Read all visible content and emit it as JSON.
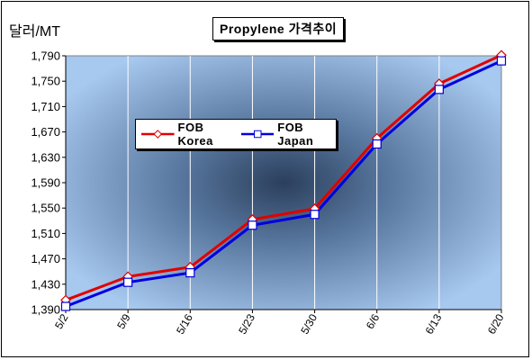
{
  "chart_data": {
    "type": "line",
    "title": "Propylene 가격추이",
    "ylabel": "달러/MT",
    "xlabel": "",
    "ylim": [
      1390,
      1790
    ],
    "yticks": [
      1390,
      1430,
      1470,
      1510,
      1550,
      1590,
      1630,
      1670,
      1710,
      1750,
      1790
    ],
    "ytick_labels": [
      "1,390",
      "1,430",
      "1,470",
      "1,510",
      "1,550",
      "1,590",
      "1,630",
      "1,670",
      "1,710",
      "1,750",
      "1,790"
    ],
    "categories": [
      "5/2",
      "5/9",
      "5/16",
      "5/23",
      "5/30",
      "6/6",
      "6/13",
      "6/20"
    ],
    "grid": "vertical",
    "legend_position": "top-left",
    "series": [
      {
        "name": "FOB Korea",
        "color": "#e00000",
        "marker": "diamond",
        "values": [
          1405,
          1442,
          1457,
          1532,
          1549,
          1660,
          1746,
          1791
        ]
      },
      {
        "name": "FOB Japan",
        "color": "#0000e0",
        "marker": "square",
        "values": [
          1395,
          1433,
          1448,
          1523,
          1540,
          1651,
          1737,
          1782
        ]
      }
    ]
  }
}
